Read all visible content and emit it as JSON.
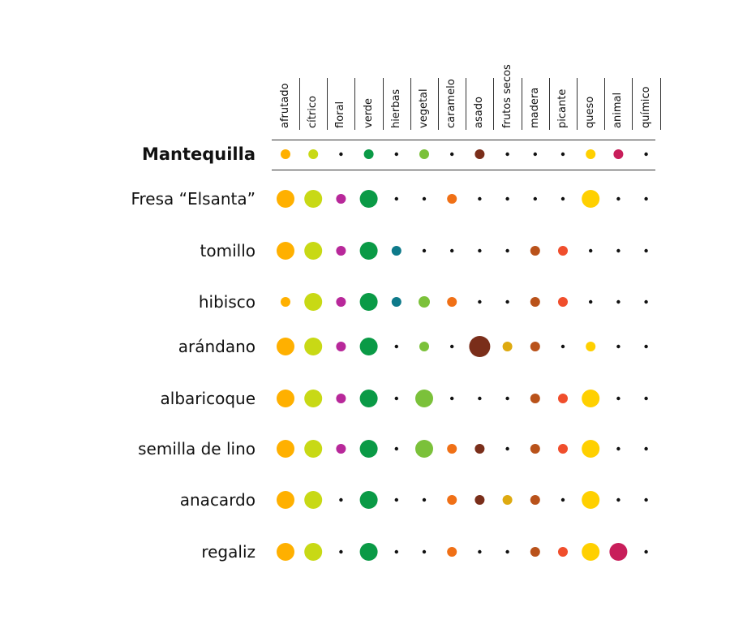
{
  "chart_data": {
    "type": "scatter",
    "title": "",
    "xlabel": "",
    "ylabel": "",
    "categories": [
      "afrutado",
      "cítrico",
      "floral",
      "verde",
      "hierbas",
      "vegetal",
      "caramelo",
      "asado",
      "frutos secos",
      "madera",
      "picante",
      "queso",
      "animal",
      "químico"
    ],
    "rows": [
      "Mantequilla",
      "Fresa “Elsanta”",
      "tomillo",
      "hibisco",
      "arándano",
      "albaricoque",
      "semilla de lino",
      "anacardo",
      "regaliz"
    ],
    "reference_row": "Mantequilla",
    "colors": [
      "#FFB000",
      "#C8D915",
      "#B8289A",
      "#0A9A46",
      "#0E7A8A",
      "#7BC13A",
      "#F07016",
      "#7A2E1A",
      "#DEAA10",
      "#B9521A",
      "#F04E2C",
      "#FFD000",
      "#C81E5A",
      "#111111"
    ],
    "values": [
      [
        1,
        1,
        0,
        1,
        0,
        1,
        0,
        1,
        0,
        0,
        0,
        1,
        1,
        0
      ],
      [
        3,
        3,
        1,
        3,
        0,
        0,
        1,
        0,
        0,
        0,
        0,
        3,
        0,
        0
      ],
      [
        3,
        3,
        1,
        3,
        1,
        0,
        0,
        0,
        0,
        1,
        1,
        0,
        0,
        0
      ],
      [
        1,
        3,
        1,
        3,
        1,
        2,
        1,
        0,
        0,
        1,
        1,
        0,
        0,
        0
      ],
      [
        3,
        3,
        1,
        3,
        0,
        1,
        0,
        4,
        1,
        1,
        0,
        1,
        0,
        0
      ],
      [
        3,
        3,
        1,
        3,
        0,
        3,
        0,
        0,
        0,
        1,
        1,
        3,
        0,
        0
      ],
      [
        3,
        3,
        1,
        3,
        0,
        3,
        1,
        1,
        0,
        1,
        1,
        3,
        0,
        0
      ],
      [
        3,
        3,
        0,
        3,
        0,
        0,
        1,
        1,
        1,
        1,
        0,
        3,
        0,
        0
      ],
      [
        3,
        3,
        0,
        3,
        0,
        0,
        1,
        0,
        0,
        1,
        1,
        3,
        3,
        0
      ]
    ]
  }
}
